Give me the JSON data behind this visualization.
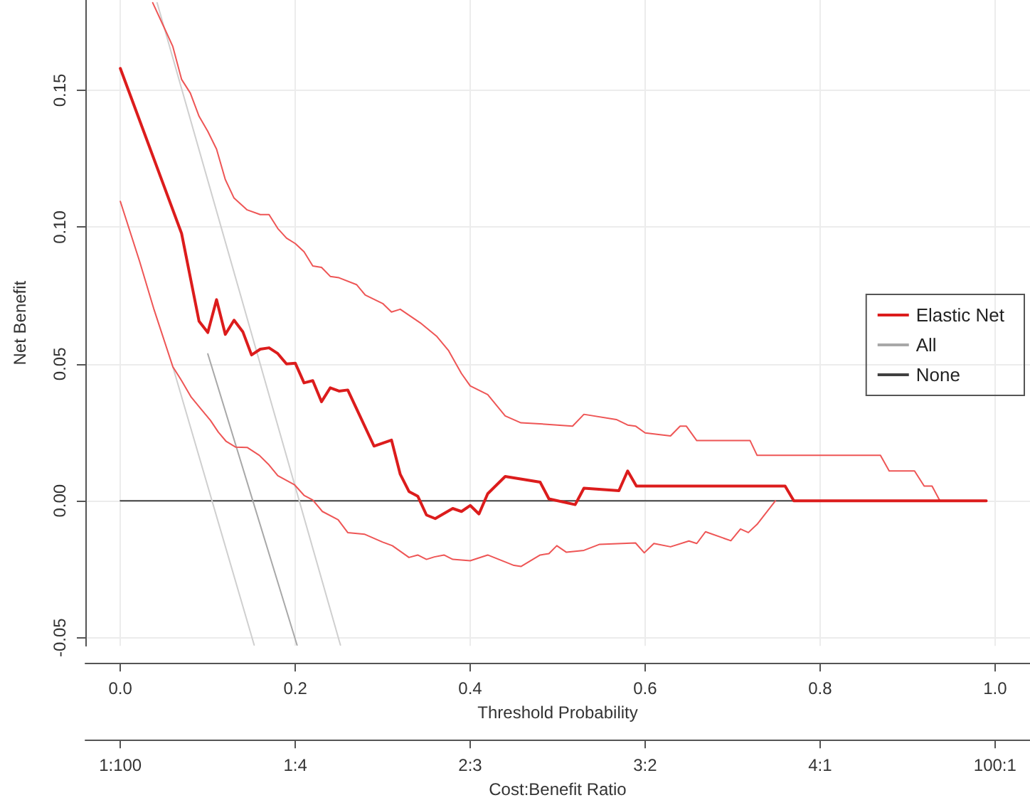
{
  "chart_data": {
    "type": "line",
    "xlabel": "Threshold Probability",
    "ylabel": "Net Benefit",
    "x2label": "Cost:Benefit Ratio",
    "xlim": [
      -0.04,
      1.04
    ],
    "ylim": [
      -0.053,
      0.183
    ],
    "xticks": [
      {
        "value": 0,
        "label": "0.0"
      },
      {
        "value": 0.2,
        "label": "0.2"
      },
      {
        "value": 0.4,
        "label": "0.4"
      },
      {
        "value": 0.6,
        "label": "0.6"
      },
      {
        "value": 0.8,
        "label": "0.8"
      },
      {
        "value": 1,
        "label": "1.0"
      }
    ],
    "yticks": [
      {
        "value": -0.05,
        "label": "-0.05"
      },
      {
        "value": 0,
        "label": "0.00"
      },
      {
        "value": 0.05,
        "label": "0.05"
      },
      {
        "value": 0.1,
        "label": "0.10"
      },
      {
        "value": 0.15,
        "label": "0.15"
      }
    ],
    "annotations": [
      "1:100",
      "1:4",
      "2:3",
      "3:2",
      "4:1",
      "100:1"
    ],
    "grid": true,
    "legend": "right",
    "marker": "none",
    "line_style": "solid",
    "series": [
      {
        "name": "Elastic Net",
        "color": "#dc1c1c",
        "x": [
          0,
          0.07,
          0.09,
          0.1,
          0.11,
          0.12,
          0.13,
          0.14,
          0.15,
          0.16,
          0.17,
          0.18,
          0.19,
          0.2,
          0.21,
          0.22,
          0.23,
          0.24,
          0.25,
          0.26,
          0.29,
          0.31,
          0.32,
          0.33,
          0.34,
          0.35,
          0.36,
          0.38,
          0.39,
          0.4,
          0.41,
          0.42,
          0.44,
          0.48,
          0.49,
          0.52,
          0.53,
          0.57,
          0.58,
          0.59,
          0.76,
          0.77,
          0.99
        ],
        "values": [
          0.158,
          0.0977,
          0.0656,
          0.0615,
          0.0735,
          0.0608,
          0.066,
          0.0618,
          0.0533,
          0.0554,
          0.0559,
          0.0538,
          0.05,
          0.0503,
          0.0431,
          0.0439,
          0.0362,
          0.0413,
          0.0401,
          0.0405,
          0.02,
          0.0222,
          0.0097,
          0.0034,
          0.0017,
          -0.0052,
          -0.0065,
          -0.0028,
          -0.0039,
          -0.0017,
          -0.0048,
          0.0026,
          0.0089,
          0.0068,
          0.0007,
          -0.0014,
          0.0046,
          0.0037,
          0.0109,
          0.0054,
          0.0054,
          0,
          0
        ]
      },
      {
        "color": "#ee5555",
        "x": [
          0.037,
          0.05,
          0.06,
          0.07,
          0.08,
          0.09,
          0.1,
          0.11,
          0.12,
          0.13,
          0.145,
          0.16,
          0.17,
          0.18,
          0.19,
          0.2,
          0.21,
          0.22,
          0.23,
          0.24,
          0.25,
          0.27,
          0.28,
          0.3,
          0.31,
          0.32,
          0.343,
          0.362,
          0.375,
          0.39,
          0.4,
          0.42,
          0.44,
          0.458,
          0.476,
          0.517,
          0.53,
          0.567,
          0.58,
          0.589,
          0.6,
          0.629,
          0.64,
          0.647,
          0.659,
          0.72,
          0.728,
          0.869,
          0.879,
          0.908,
          0.919,
          0.928,
          0.937,
          0.99
        ],
        "values": [
          0.182,
          0.173,
          0.166,
          0.154,
          0.149,
          0.1405,
          0.135,
          0.1285,
          0.1174,
          0.1106,
          0.1063,
          0.1046,
          0.1046,
          0.0995,
          0.096,
          0.094,
          0.091,
          0.0858,
          0.0853,
          0.082,
          0.0815,
          0.079,
          0.0752,
          0.0721,
          0.069,
          0.07,
          0.065,
          0.06,
          0.055,
          0.0465,
          0.042,
          0.0388,
          0.031,
          0.0285,
          0.0282,
          0.0273,
          0.0316,
          0.0297,
          0.0277,
          0.0273,
          0.0248,
          0.0237,
          0.0273,
          0.0273,
          0.022,
          0.022,
          0.0166,
          0.0166,
          0.0109,
          0.0109,
          0.0054,
          0.0054,
          0,
          0
        ]
      },
      {
        "color": "#ee5555",
        "x": [
          0,
          0.022,
          0.038,
          0.06,
          0.07,
          0.081,
          0.092,
          0.103,
          0.112,
          0.121,
          0.132,
          0.145,
          0.159,
          0.17,
          0.18,
          0.199,
          0.21,
          0.22,
          0.231,
          0.249,
          0.26,
          0.279,
          0.3,
          0.311,
          0.33,
          0.34,
          0.35,
          0.359,
          0.37,
          0.38,
          0.4,
          0.42,
          0.45,
          0.458,
          0.48,
          0.49,
          0.499,
          0.51,
          0.53,
          0.548,
          0.589,
          0.599,
          0.61,
          0.629,
          0.65,
          0.659,
          0.669,
          0.698,
          0.709,
          0.718,
          0.728,
          0.749
        ],
        "values": [
          0.1094,
          0.0875,
          0.0704,
          0.049,
          0.0439,
          0.0379,
          0.0336,
          0.0294,
          0.0251,
          0.0217,
          0.0196,
          0.0195,
          0.0166,
          0.0131,
          0.0092,
          0.0059,
          0.002,
          0.0003,
          -0.0039,
          -0.0069,
          -0.0116,
          -0.0122,
          -0.0151,
          -0.0164,
          -0.0207,
          -0.0198,
          -0.0214,
          -0.0205,
          -0.0198,
          -0.0214,
          -0.0219,
          -0.0198,
          -0.0236,
          -0.024,
          -0.0198,
          -0.0193,
          -0.0164,
          -0.0188,
          -0.0181,
          -0.0159,
          -0.0154,
          -0.019,
          -0.0156,
          -0.0168,
          -0.0147,
          -0.0156,
          -0.0113,
          -0.0146,
          -0.0103,
          -0.0116,
          -0.0086,
          0
        ]
      },
      {
        "name": "All",
        "color": "#a8a8a8",
        "x": [
          0.1,
          0.202
        ],
        "values": [
          0.0537,
          -0.0527
        ]
      },
      {
        "color": "#cfcfcf",
        "x": [
          0.042,
          0.2516
        ],
        "values": [
          0.182,
          -0.0527
        ]
      },
      {
        "color": "#cfcfcf",
        "x": [
          0.06,
          0.153
        ],
        "values": [
          0.049,
          -0.0527
        ]
      },
      {
        "name": "None",
        "color": "#404040",
        "x": [
          0,
          0.99
        ],
        "values": [
          0,
          0
        ]
      }
    ]
  }
}
